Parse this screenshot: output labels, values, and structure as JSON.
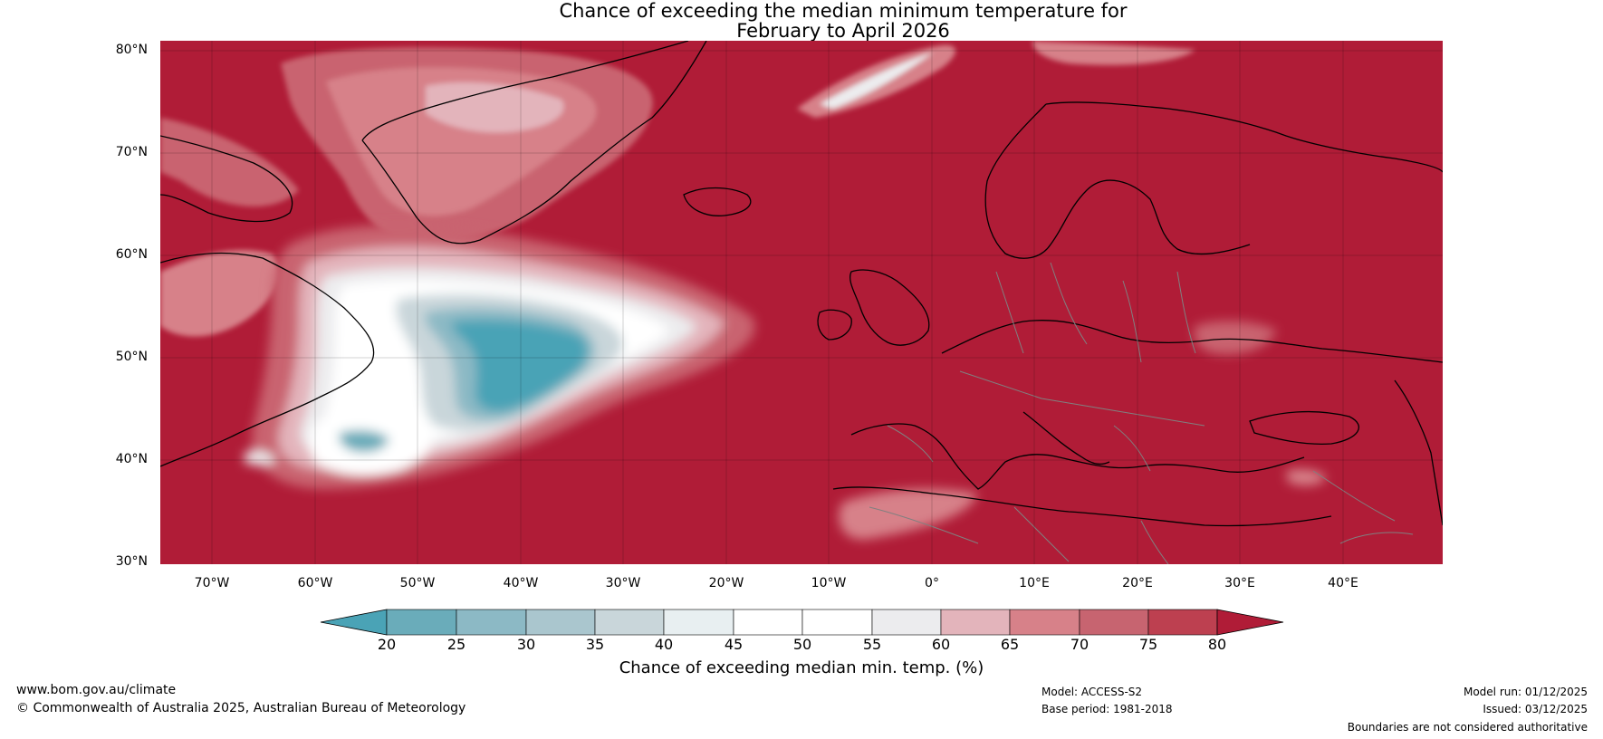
{
  "title_line1": "Chance of exceeding the median minimum temperature for",
  "title_line2": "February to April 2026",
  "map": {
    "lat_labels": [
      "80°N",
      "70°N",
      "60°N",
      "50°N",
      "40°N",
      "30°N"
    ],
    "lon_labels": [
      "70°W",
      "60°W",
      "50°W",
      "40°W",
      "30°W",
      "20°W",
      "10°W",
      "0°",
      "10°E",
      "20°E",
      "30°E",
      "40°E"
    ],
    "colors": {
      "ocean_high": "#b01c37",
      "coast": "#000000",
      "border": "#808080"
    }
  },
  "colorbar": {
    "ticks": [
      "20",
      "25",
      "30",
      "35",
      "40",
      "45",
      "50",
      "55",
      "60",
      "65",
      "70",
      "75",
      "80"
    ],
    "colors": [
      "#4aa3b6",
      "#6aacba",
      "#8cb9c5",
      "#aac6ce",
      "#c9d6da",
      "#e8eff1",
      "#ffffff",
      "#ffffff",
      "#ececee",
      "#e3b4bb",
      "#d78189",
      "#c76470",
      "#bd4050",
      "#b01c37"
    ],
    "label": "Chance of exceeding median min. temp. (%)"
  },
  "footer": {
    "website": "www.bom.gov.au/climate",
    "copyright": "© Commonwealth of Australia 2025, Australian Bureau of Meteorology",
    "model": "Model: ACCESS-S2",
    "base_period": "Base period: 1981-2018",
    "model_run": "Model run: 01/12/2025",
    "issued": "Issued: 03/12/2025",
    "disclaimer": "Boundaries are not considered authoritative"
  }
}
